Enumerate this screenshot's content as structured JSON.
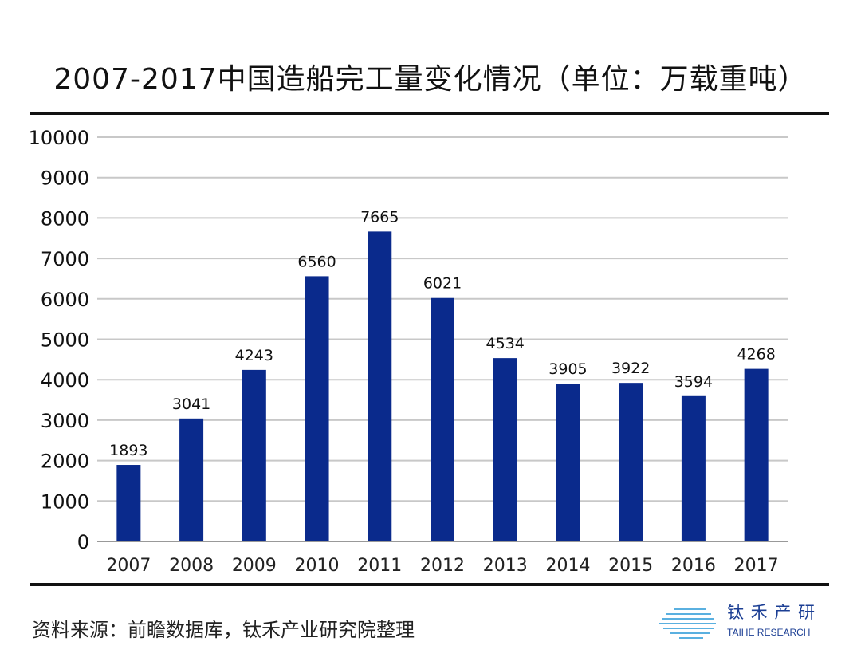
{
  "chart_data": {
    "type": "bar",
    "title": "2007-2017中国造船完工量变化情况（单位：万载重吨）",
    "categories": [
      "2007",
      "2008",
      "2009",
      "2010",
      "2011",
      "2012",
      "2013",
      "2014",
      "2015",
      "2016",
      "2017"
    ],
    "values": [
      1893,
      3041,
      4243,
      6560,
      7665,
      6021,
      4534,
      3905,
      3922,
      3594,
      4268
    ],
    "ylim": [
      0,
      10000
    ],
    "yticks": [
      0,
      1000,
      2000,
      3000,
      4000,
      5000,
      6000,
      7000,
      8000,
      9000,
      10000
    ],
    "grid": true,
    "bar_color": "#0a2a8c",
    "xlabel": "",
    "ylabel": ""
  },
  "source": "资料来源：前瞻数据库，钛禾产业研究院整理",
  "logo": {
    "cn": "钛 禾 产 研",
    "en": "TAIHE RESEARCH"
  }
}
